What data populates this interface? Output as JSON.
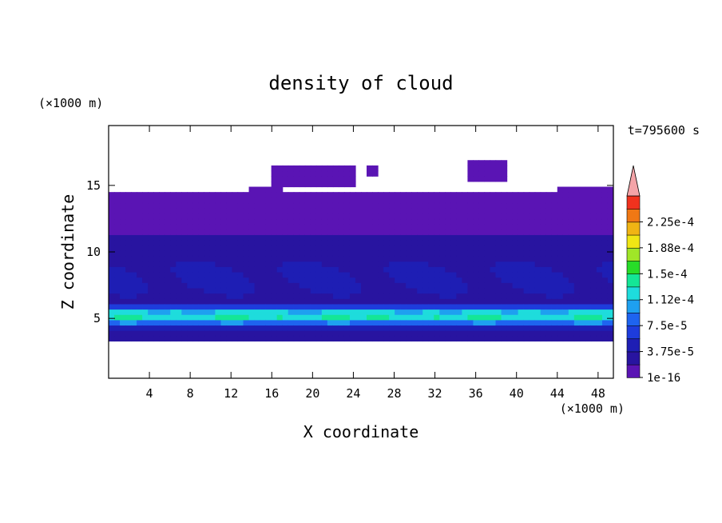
{
  "chart_data": {
    "type": "heatmap",
    "title": "density of cloud",
    "xlabel": "X coordinate",
    "ylabel": "Z coordinate",
    "x_unit": "(×1000 m)",
    "y_unit": "(×1000 m)",
    "time_label": "t=795600 s",
    "xlim": [
      0,
      49.5
    ],
    "ylim": [
      0.5,
      19.5
    ],
    "x_ticks": [
      4,
      8,
      12,
      16,
      20,
      24,
      28,
      32,
      36,
      40,
      44,
      48
    ],
    "y_ticks": [
      5,
      10,
      15
    ],
    "colorbar": {
      "levels": [
        1e-16,
        1.875e-05,
        3.75e-05,
        5.625e-05,
        7.5e-05,
        9.375e-05,
        0.0001125,
        0.00013125,
        0.00015,
        0.00016875,
        0.0001875,
        0.00020625,
        0.000225,
        0.00024375
      ],
      "tick_labels": [
        "1e-16",
        "3.75e-5",
        "7.5e-5",
        "1.12e-4",
        "1.5e-4",
        "1.88e-4",
        "2.25e-4"
      ],
      "colors": [
        "#5a14b4",
        "#2814a0",
        "#1e1eb4",
        "#1e3cdc",
        "#1e64f0",
        "#1ea0f0",
        "#1edcdc",
        "#14e696",
        "#28dc28",
        "#a0e628",
        "#f0e614",
        "#f0b414",
        "#f07814",
        "#f0321e"
      ],
      "overflow_color": "#f4a4a8"
    },
    "field_summary": {
      "domain_x_range": [
        0,
        49.5
      ],
      "cloud_base_z": 3.5,
      "cloud_top_z": 14.5,
      "max_density_layer_z": [
        4.5,
        6.0
      ],
      "isolated_patches": [
        {
          "x_range": [
            14,
            17
          ],
          "z_range": [
            13.7,
            14.8
          ]
        },
        {
          "x_range": [
            16,
            24
          ],
          "z_range": [
            14.8,
            16.5
          ]
        },
        {
          "x_range": [
            25.5,
            26.5
          ],
          "z_range": [
            15.8,
            16.5
          ]
        },
        {
          "x_range": [
            25,
            27
          ],
          "z_range": [
            13.5,
            14.5
          ]
        },
        {
          "x_range": [
            35,
            39
          ],
          "z_range": [
            15.5,
            16.8
          ]
        },
        {
          "x_range": [
            44,
            49.5
          ],
          "z_range": [
            13,
            14.8
          ]
        }
      ]
    }
  }
}
